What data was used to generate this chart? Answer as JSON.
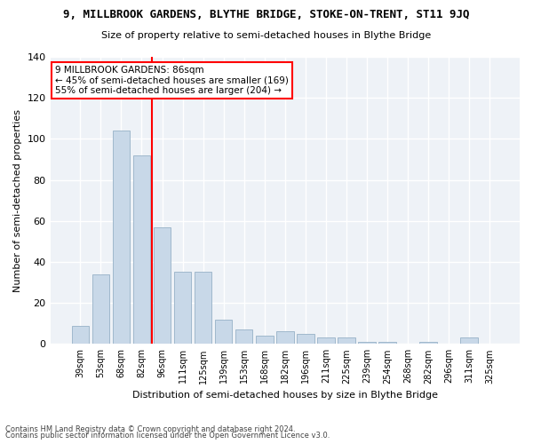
{
  "title1": "9, MILLBROOK GARDENS, BLYTHE BRIDGE, STOKE-ON-TRENT, ST11 9JQ",
  "title2": "Size of property relative to semi-detached houses in Blythe Bridge",
  "xlabel": "Distribution of semi-detached houses by size in Blythe Bridge",
  "ylabel": "Number of semi-detached properties",
  "categories": [
    "39sqm",
    "53sqm",
    "68sqm",
    "82sqm",
    "96sqm",
    "111sqm",
    "125sqm",
    "139sqm",
    "153sqm",
    "168sqm",
    "182sqm",
    "196sqm",
    "211sqm",
    "225sqm",
    "239sqm",
    "254sqm",
    "268sqm",
    "282sqm",
    "296sqm",
    "311sqm",
    "325sqm"
  ],
  "values": [
    9,
    34,
    104,
    92,
    57,
    35,
    35,
    12,
    7,
    4,
    6,
    5,
    3,
    3,
    1,
    1,
    0,
    1,
    0,
    3,
    0
  ],
  "bar_color": "#c8d8e8",
  "bar_edge_color": "#a0b8cc",
  "vline_color": "red",
  "vline_x_index": 3,
  "annotation_line1": "9 MILLBROOK GARDENS: 86sqm",
  "annotation_line2": "← 45% of semi-detached houses are smaller (169)",
  "annotation_line3": "55% of semi-detached houses are larger (204) →",
  "annotation_box_color": "white",
  "annotation_box_edge": "red",
  "ylim": [
    0,
    140
  ],
  "yticks": [
    0,
    20,
    40,
    60,
    80,
    100,
    120,
    140
  ],
  "bg_color": "#eef2f7",
  "grid_color": "white",
  "footer1": "Contains HM Land Registry data © Crown copyright and database right 2024.",
  "footer2": "Contains public sector information licensed under the Open Government Licence v3.0."
}
